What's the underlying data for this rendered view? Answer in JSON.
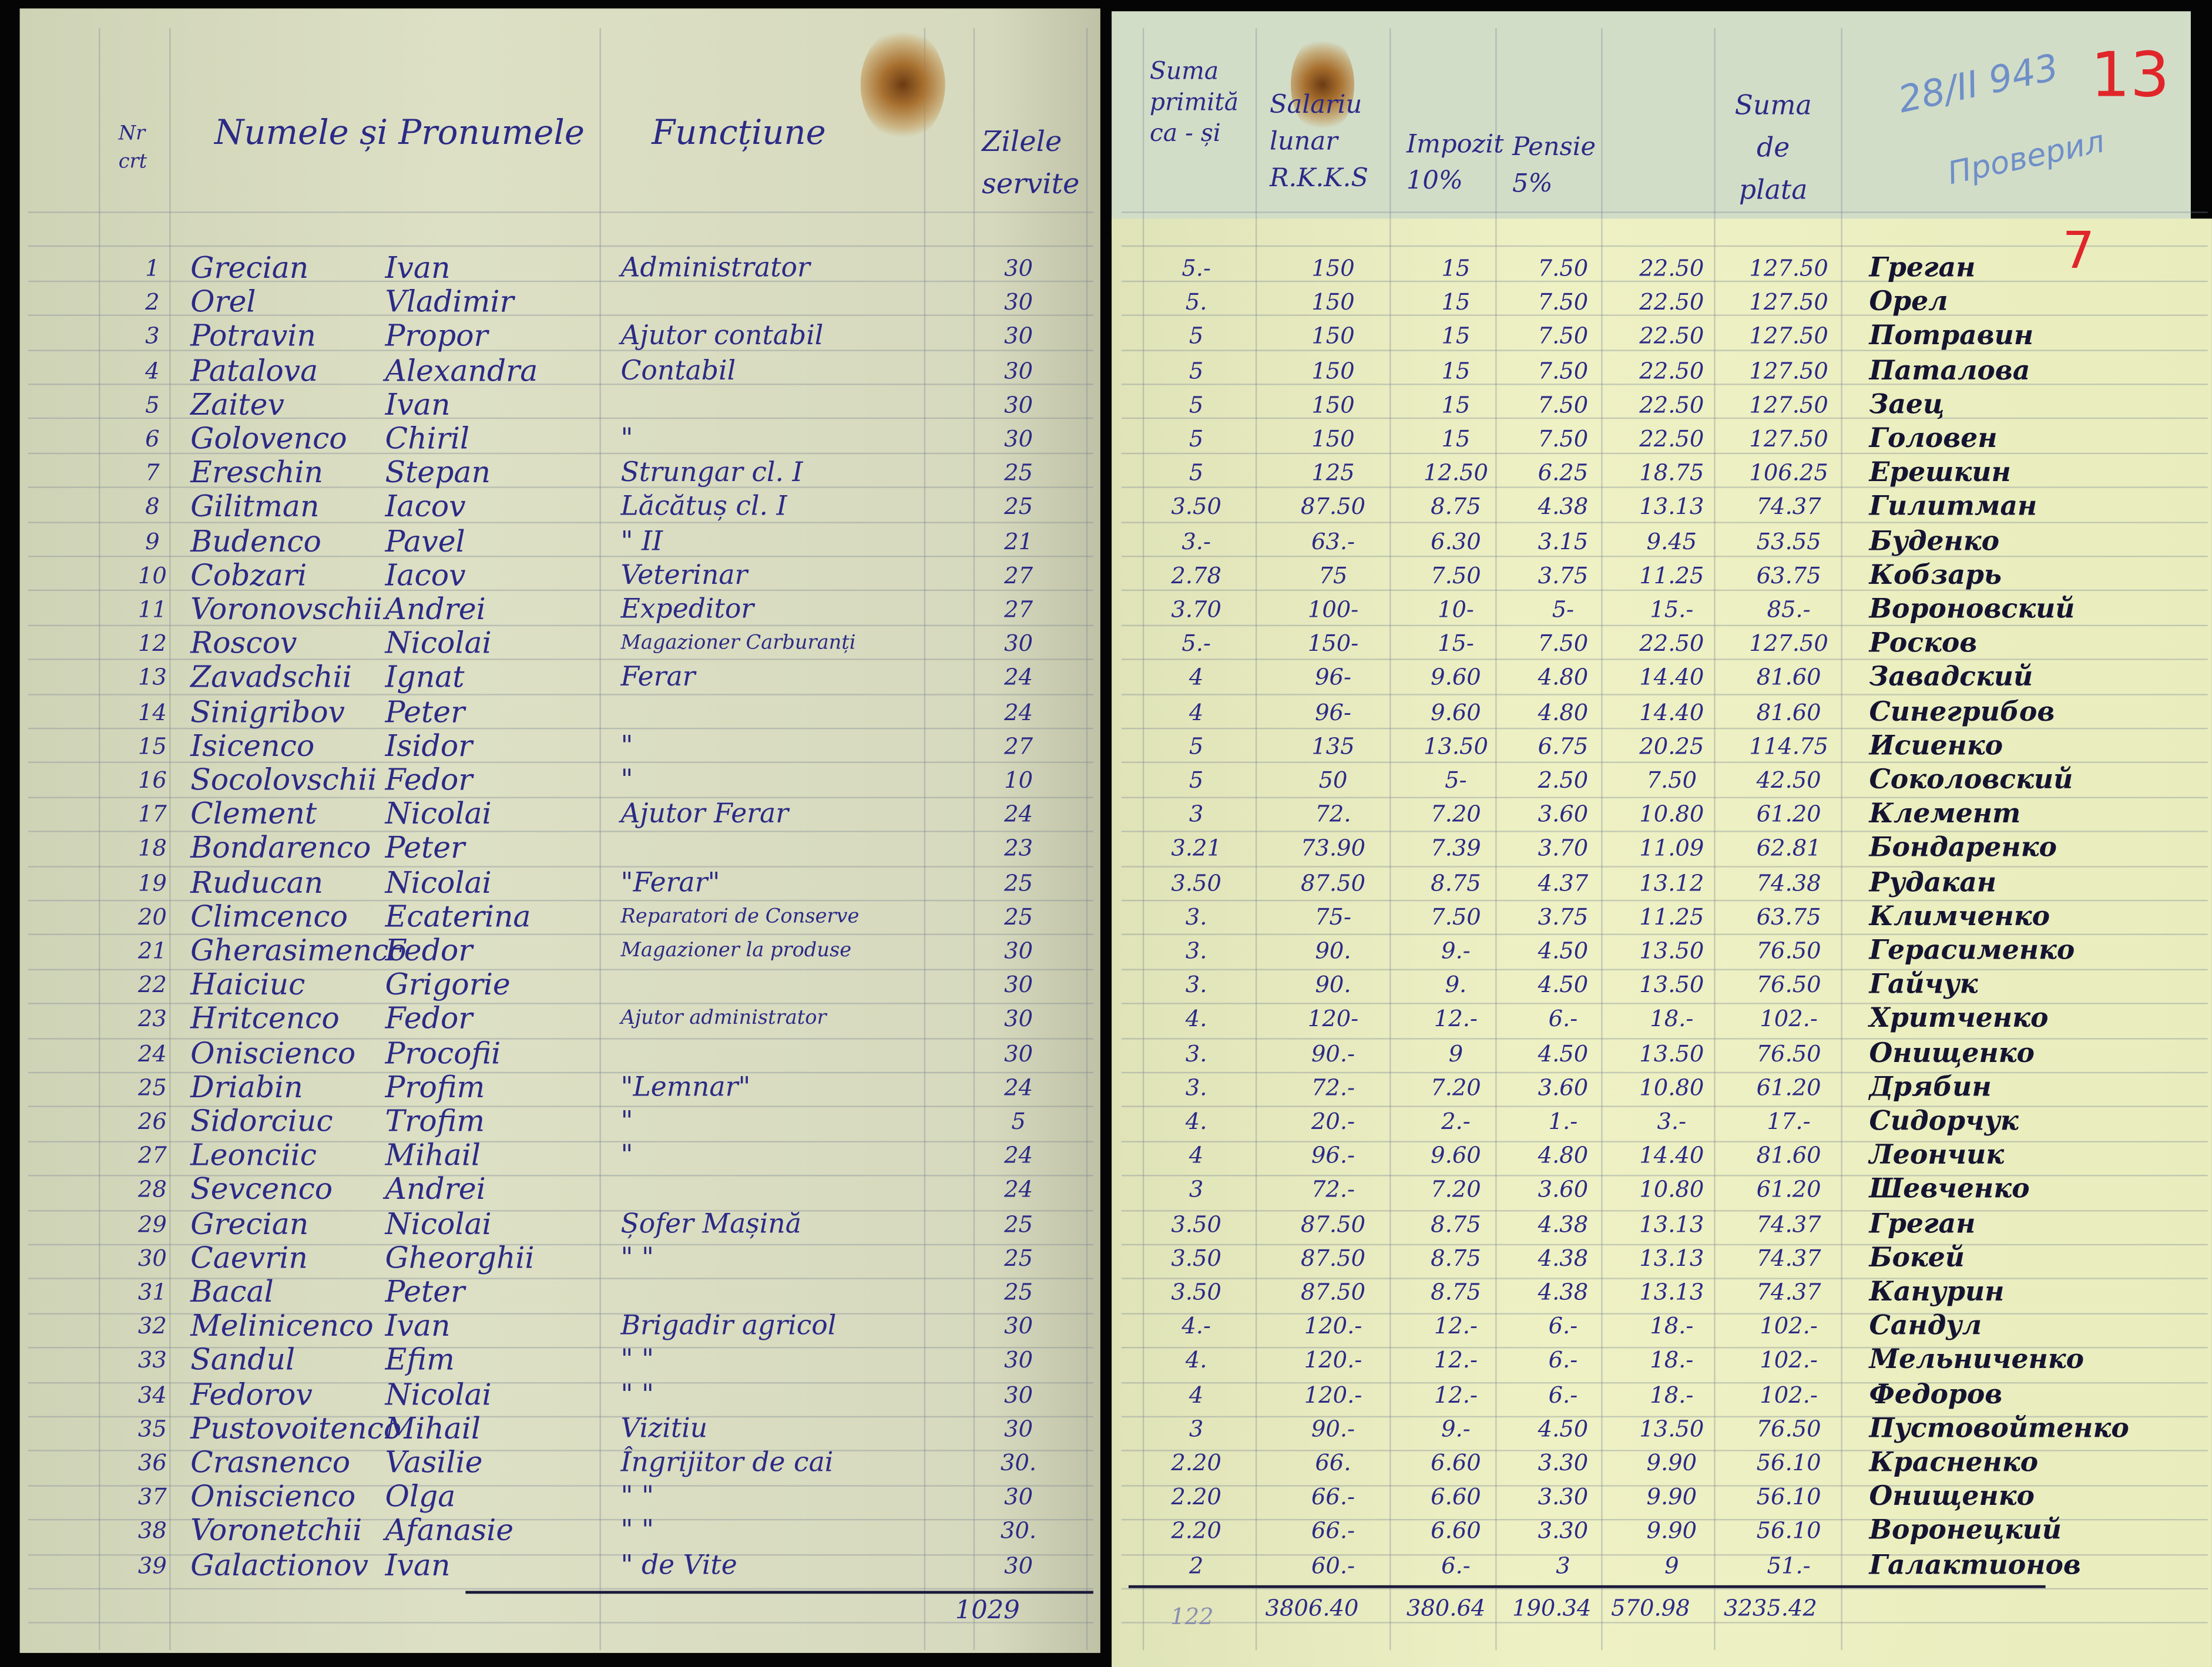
{
  "left_page": {
    "headers": {
      "nr": "Nr crt",
      "name": "Numele și Pronumele",
      "function": "Funcțiune",
      "days": "Zilele servite"
    }
  },
  "right_page": {
    "headers": {
      "advance": "Suma primită ca - și",
      "salary": "Salariu lunar R.K.K.S",
      "tax": "Impozit 10%",
      "pension": "Pensie 5%",
      "to_pay": "Suma de plata"
    },
    "annotations": {
      "pencil_date": "28/II 943",
      "pencil_note": "Проверил",
      "red_page_number": "13",
      "red_mark": "7"
    }
  },
  "rows": [
    {
      "nr": "1",
      "surname": "Grecian",
      "first": "Ivan",
      "function": "Administrator",
      "days": "30",
      "advance": "5.-",
      "salary": "150",
      "tax": "15",
      "pension": "7.50",
      "deduct": "22.50",
      "pay": "127.50",
      "signature": "Греган"
    },
    {
      "nr": "2",
      "surname": "Orel",
      "first": "Vladimir",
      "function": "",
      "days": "30",
      "advance": "5.",
      "salary": "150",
      "tax": "15",
      "pension": "7.50",
      "deduct": "22.50",
      "pay": "127.50",
      "signature": "Орел"
    },
    {
      "nr": "3",
      "surname": "Potravin",
      "first": "Propor",
      "function": "Ajutor contabil",
      "days": "30",
      "advance": "5",
      "salary": "150",
      "tax": "15",
      "pension": "7.50",
      "deduct": "22.50",
      "pay": "127.50",
      "signature": "Потравин"
    },
    {
      "nr": "4",
      "surname": "Patalova",
      "first": "Alexandra",
      "function": "Contabil",
      "days": "30",
      "advance": "5",
      "salary": "150",
      "tax": "15",
      "pension": "7.50",
      "deduct": "22.50",
      "pay": "127.50",
      "signature": "Паталова"
    },
    {
      "nr": "5",
      "surname": "Zaitev",
      "first": "Ivan",
      "function": "",
      "days": "30",
      "advance": "5",
      "salary": "150",
      "tax": "15",
      "pension": "7.50",
      "deduct": "22.50",
      "pay": "127.50",
      "signature": "Заец"
    },
    {
      "nr": "6",
      "surname": "Golovenco",
      "first": "Chiril",
      "function": "\"",
      "days": "30",
      "advance": "5",
      "salary": "150",
      "tax": "15",
      "pension": "7.50",
      "deduct": "22.50",
      "pay": "127.50",
      "signature": "Головен"
    },
    {
      "nr": "7",
      "surname": "Ereschin",
      "first": "Stepan",
      "function": "Strungar cl. I",
      "days": "25",
      "advance": "5",
      "salary": "125",
      "tax": "12.50",
      "pension": "6.25",
      "deduct": "18.75",
      "pay": "106.25",
      "signature": "Ерешкин"
    },
    {
      "nr": "8",
      "surname": "Gilitman",
      "first": "Iacov",
      "function": "Lăcătuș cl. I",
      "days": "25",
      "advance": "3.50",
      "salary": "87.50",
      "tax": "8.75",
      "pension": "4.38",
      "deduct": "13.13",
      "pay": "74.37",
      "signature": "Гилитман"
    },
    {
      "nr": "9",
      "surname": "Budenco",
      "first": "Pavel",
      "function": "\" II",
      "days": "21",
      "advance": "3.-",
      "salary": "63.-",
      "tax": "6.30",
      "pension": "3.15",
      "deduct": "9.45",
      "pay": "53.55",
      "signature": "Буденко"
    },
    {
      "nr": "10",
      "surname": "Cobzari",
      "first": "Iacov",
      "function": "Veterinar",
      "days": "27",
      "advance": "2.78",
      "salary": "75",
      "tax": "7.50",
      "pension": "3.75",
      "deduct": "11.25",
      "pay": "63.75",
      "signature": "Кобзарь"
    },
    {
      "nr": "11",
      "surname": "Voronovschii",
      "first": "Andrei",
      "function": "Expeditor",
      "days": "27",
      "advance": "3.70",
      "salary": "100-",
      "tax": "10-",
      "pension": "5-",
      "deduct": "15.-",
      "pay": "85.-",
      "signature": "Вороновский"
    },
    {
      "nr": "12",
      "surname": "Roscov",
      "first": "Nicolai",
      "function": "Magazioner Carburanți",
      "days": "30",
      "advance": "5.-",
      "salary": "150-",
      "tax": "15-",
      "pension": "7.50",
      "deduct": "22.50",
      "pay": "127.50",
      "signature": "Росков"
    },
    {
      "nr": "13",
      "surname": "Zavadschii",
      "first": "Ignat",
      "function": "Ferar",
      "days": "24",
      "advance": "4",
      "salary": "96-",
      "tax": "9.60",
      "pension": "4.80",
      "deduct": "14.40",
      "pay": "81.60",
      "signature": "Завадский"
    },
    {
      "nr": "14",
      "surname": "Sinigribov",
      "first": "Peter",
      "function": "",
      "days": "24",
      "advance": "4",
      "salary": "96-",
      "tax": "9.60",
      "pension": "4.80",
      "deduct": "14.40",
      "pay": "81.60",
      "signature": "Синегрибов"
    },
    {
      "nr": "15",
      "surname": "Isicenco",
      "first": "Isidor",
      "function": "\"",
      "days": "27",
      "advance": "5",
      "salary": "135",
      "tax": "13.50",
      "pension": "6.75",
      "deduct": "20.25",
      "pay": "114.75",
      "signature": "Исиенко"
    },
    {
      "nr": "16",
      "surname": "Socolovschii",
      "first": "Fedor",
      "function": "\"",
      "days": "10",
      "advance": "5",
      "salary": "50",
      "tax": "5-",
      "pension": "2.50",
      "deduct": "7.50",
      "pay": "42.50",
      "signature": "Соколовский"
    },
    {
      "nr": "17",
      "surname": "Clement",
      "first": "Nicolai",
      "function": "Ajutor Ferar",
      "days": "24",
      "advance": "3",
      "salary": "72.",
      "tax": "7.20",
      "pension": "3.60",
      "deduct": "10.80",
      "pay": "61.20",
      "signature": "Клемент"
    },
    {
      "nr": "18",
      "surname": "Bondarenco",
      "first": "Peter",
      "function": "",
      "days": "23",
      "advance": "3.21",
      "salary": "73.90",
      "tax": "7.39",
      "pension": "3.70",
      "deduct": "11.09",
      "pay": "62.81",
      "signature": "Бондаренко"
    },
    {
      "nr": "19",
      "surname": "Ruducan",
      "first": "Nicolai",
      "function": "\"Ferar\"",
      "days": "25",
      "advance": "3.50",
      "salary": "87.50",
      "tax": "8.75",
      "pension": "4.37",
      "deduct": "13.12",
      "pay": "74.38",
      "signature": "Рудакан"
    },
    {
      "nr": "20",
      "surname": "Climcenco",
      "first": "Ecaterina",
      "function": "Reparatori de Conserve",
      "days": "25",
      "advance": "3.",
      "salary": "75-",
      "tax": "7.50",
      "pension": "3.75",
      "deduct": "11.25",
      "pay": "63.75",
      "signature": "Климченко"
    },
    {
      "nr": "21",
      "surname": "Gherasimenco",
      "first": "Fedor",
      "function": "Magazioner la produse",
      "days": "30",
      "advance": "3.",
      "salary": "90.",
      "tax": "9.-",
      "pension": "4.50",
      "deduct": "13.50",
      "pay": "76.50",
      "signature": "Герасименко"
    },
    {
      "nr": "22",
      "surname": "Haiciuc",
      "first": "Grigorie",
      "function": "",
      "days": "30",
      "advance": "3.",
      "salary": "90.",
      "tax": "9.",
      "pension": "4.50",
      "deduct": "13.50",
      "pay": "76.50",
      "signature": "Гайчук"
    },
    {
      "nr": "23",
      "surname": "Hritcenco",
      "first": "Fedor",
      "function": "Ajutor administrator",
      "days": "30",
      "advance": "4.",
      "salary": "120-",
      "tax": "12.-",
      "pension": "6.-",
      "deduct": "18.-",
      "pay": "102.-",
      "signature": "Хритченко"
    },
    {
      "nr": "24",
      "surname": "Oniscienco",
      "first": "Procofii",
      "function": "",
      "days": "30",
      "advance": "3.",
      "salary": "90.-",
      "tax": "9",
      "pension": "4.50",
      "deduct": "13.50",
      "pay": "76.50",
      "signature": "Онищенко"
    },
    {
      "nr": "25",
      "surname": "Driabin",
      "first": "Profim",
      "function": "\"Lemnar\"",
      "days": "24",
      "advance": "3.",
      "salary": "72.-",
      "tax": "7.20",
      "pension": "3.60",
      "deduct": "10.80",
      "pay": "61.20",
      "signature": "Дрябин"
    },
    {
      "nr": "26",
      "surname": "Sidorciuc",
      "first": "Trofim",
      "function": "\"",
      "days": "5",
      "advance": "4.",
      "salary": "20.-",
      "tax": "2.-",
      "pension": "1.-",
      "deduct": "3.-",
      "pay": "17.-",
      "signature": "Сидорчук"
    },
    {
      "nr": "27",
      "surname": "Leonciic",
      "first": "Mihail",
      "function": "\"",
      "days": "24",
      "advance": "4",
      "salary": "96.-",
      "tax": "9.60",
      "pension": "4.80",
      "deduct": "14.40",
      "pay": "81.60",
      "signature": "Леончик"
    },
    {
      "nr": "28",
      "surname": "Sevcenco",
      "first": "Andrei",
      "function": "",
      "days": "24",
      "advance": "3",
      "salary": "72.-",
      "tax": "7.20",
      "pension": "3.60",
      "deduct": "10.80",
      "pay": "61.20",
      "signature": "Шевченко"
    },
    {
      "nr": "29",
      "surname": "Grecian",
      "first": "Nicolai",
      "function": "Șofer Mașină",
      "days": "25",
      "advance": "3.50",
      "salary": "87.50",
      "tax": "8.75",
      "pension": "4.38",
      "deduct": "13.13",
      "pay": "74.37",
      "signature": "Греган"
    },
    {
      "nr": "30",
      "surname": "Caevrin",
      "first": "Gheorghii",
      "function": "\" \"",
      "days": "25",
      "advance": "3.50",
      "salary": "87.50",
      "tax": "8.75",
      "pension": "4.38",
      "deduct": "13.13",
      "pay": "74.37",
      "signature": "Бокей"
    },
    {
      "nr": "31",
      "surname": "Bacal",
      "first": "Peter",
      "function": "",
      "days": "25",
      "advance": "3.50",
      "salary": "87.50",
      "tax": "8.75",
      "pension": "4.38",
      "deduct": "13.13",
      "pay": "74.37",
      "signature": "Канурин"
    },
    {
      "nr": "32",
      "surname": "Melinicenco",
      "first": "Ivan",
      "function": "Brigadir agricol",
      "days": "30",
      "advance": "4.-",
      "salary": "120.-",
      "tax": "12.-",
      "pension": "6.-",
      "deduct": "18.-",
      "pay": "102.-",
      "signature": "Сандул"
    },
    {
      "nr": "33",
      "surname": "Sandul",
      "first": "Efim",
      "function": "\" \"",
      "days": "30",
      "advance": "4.",
      "salary": "120.-",
      "tax": "12.-",
      "pension": "6.-",
      "deduct": "18.-",
      "pay": "102.-",
      "signature": "Мельниченко"
    },
    {
      "nr": "34",
      "surname": "Fedorov",
      "first": "Nicolai",
      "function": "\" \"",
      "days": "30",
      "advance": "4",
      "salary": "120.-",
      "tax": "12.-",
      "pension": "6.-",
      "deduct": "18.-",
      "pay": "102.-",
      "signature": "Федоров"
    },
    {
      "nr": "35",
      "surname": "Pustovoitenco",
      "first": "Mihail",
      "function": "Vizitiu",
      "days": "30",
      "advance": "3",
      "salary": "90.-",
      "tax": "9.-",
      "pension": "4.50",
      "deduct": "13.50",
      "pay": "76.50",
      "signature": "Пустовойтенко"
    },
    {
      "nr": "36",
      "surname": "Crasnenco",
      "first": "Vasilie",
      "function": "Îngrijitor de cai",
      "days": "30.",
      "advance": "2.20",
      "salary": "66.",
      "tax": "6.60",
      "pension": "3.30",
      "deduct": "9.90",
      "pay": "56.10",
      "signature": "Красненко"
    },
    {
      "nr": "37",
      "surname": "Oniscienco",
      "first": "Olga",
      "function": "\" \"",
      "days": "30",
      "advance": "2.20",
      "salary": "66.-",
      "tax": "6.60",
      "pension": "3.30",
      "deduct": "9.90",
      "pay": "56.10",
      "signature": "Онищенко"
    },
    {
      "nr": "38",
      "surname": "Voronetchii",
      "first": "Afanasie",
      "function": "\" \"",
      "days": "30.",
      "advance": "2.20",
      "salary": "66.-",
      "tax": "6.60",
      "pension": "3.30",
      "deduct": "9.90",
      "pay": "56.10",
      "signature": "Воронецкий"
    },
    {
      "nr": "39",
      "surname": "Galactionov",
      "first": "Ivan",
      "function": "\" de Vite",
      "days": "30",
      "advance": "2",
      "salary": "60.-",
      "tax": "6.-",
      "pension": "3",
      "deduct": "9",
      "pay": "51.-",
      "signature": "Галактионов"
    }
  ],
  "totals": {
    "days": "1029",
    "advance": "122",
    "salary": "3806.40",
    "tax": "380.64",
    "pension": "190.34",
    "deduct": "570.98",
    "pay": "3235.42"
  }
}
